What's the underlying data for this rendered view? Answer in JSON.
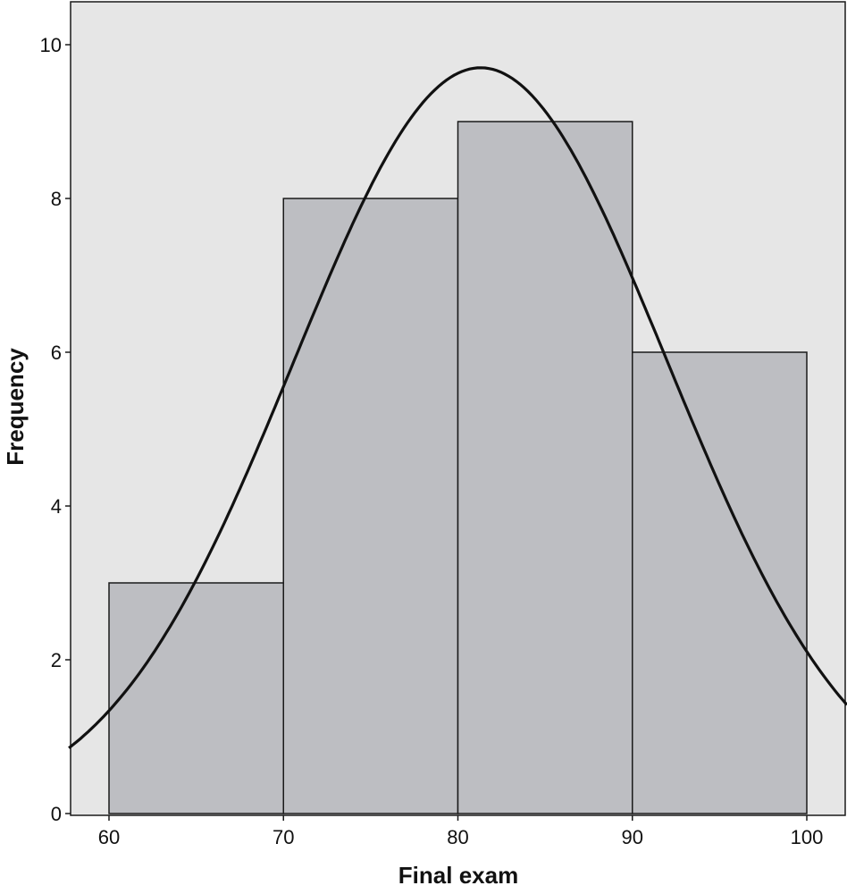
{
  "chart_data": {
    "type": "bar",
    "subtype": "histogram with fitted normal curve",
    "title": "",
    "xlabel": "Final exam",
    "ylabel": "Frequency",
    "bins": [
      {
        "start": 60,
        "end": 70,
        "value": 3
      },
      {
        "start": 70,
        "end": 80,
        "value": 8
      },
      {
        "start": 80,
        "end": 90,
        "value": 9
      },
      {
        "start": 90,
        "end": 100,
        "value": 6
      }
    ],
    "xticks": [
      60,
      70,
      80,
      90,
      100
    ],
    "yticks": [
      0,
      2,
      4,
      6,
      8,
      10
    ],
    "xlim": [
      57.7,
      102.3
    ],
    "ylim": [
      0,
      10.5
    ],
    "normal_curve": {
      "mean": 81.3,
      "sd": 10.7,
      "peak": 9.7
    },
    "grid": false,
    "colors": {
      "plot_background": "#e6e6e6",
      "bar_fill": "#bdbec2",
      "bar_stroke": "#1a1a1a",
      "curve": "#111111"
    }
  }
}
